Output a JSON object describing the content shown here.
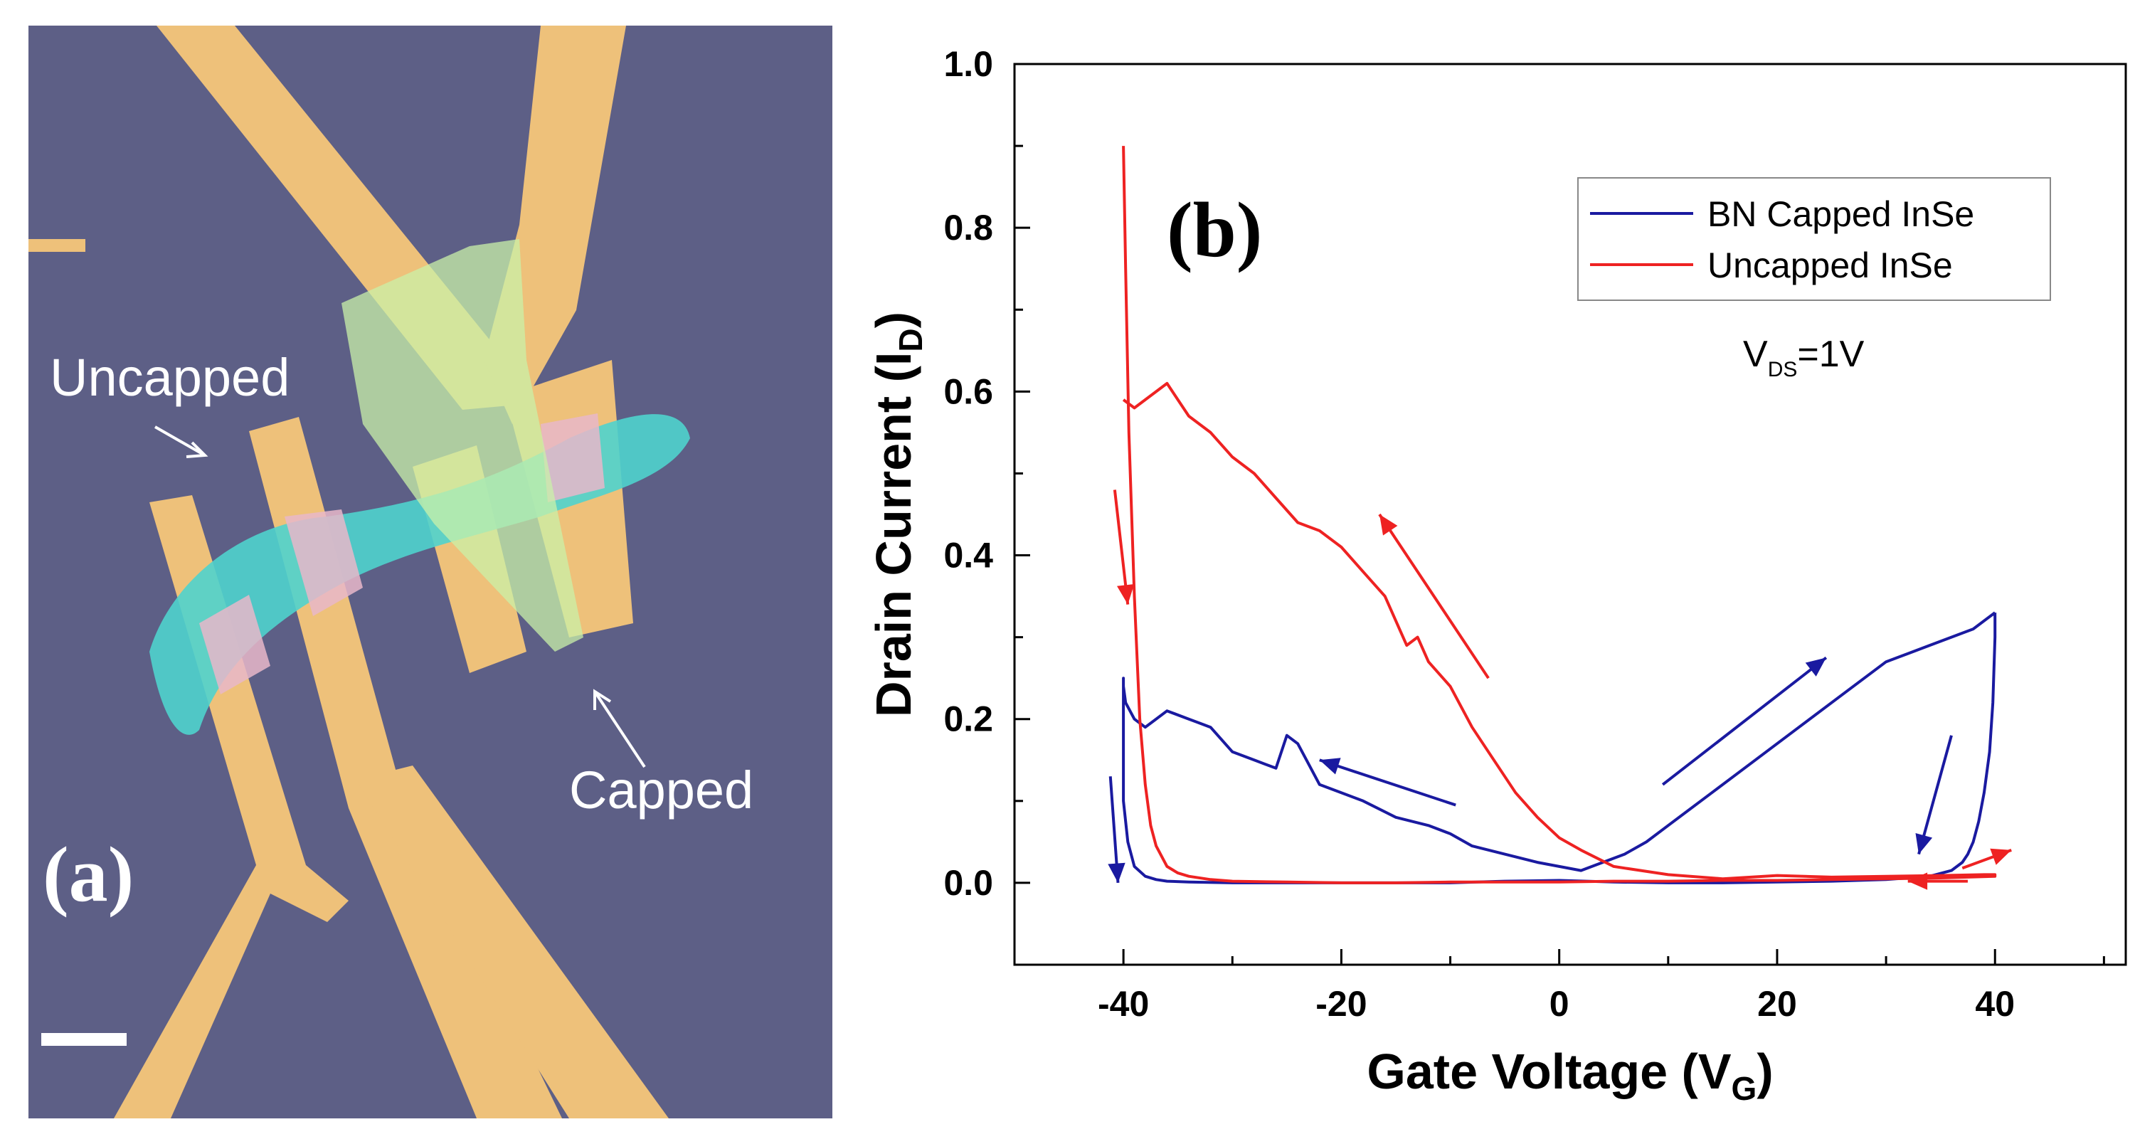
{
  "panel_a": {
    "label": "(a)",
    "uncapped_label": "Uncapped",
    "capped_label": "Capped",
    "colors": {
      "substrate": "#5d5f86",
      "gold": "#eec17a",
      "inse_flake": "#4fd3cd",
      "bn_flake": "#c9f0a8",
      "overlap": "#e7b7c9",
      "arrow": "#ffffff"
    }
  },
  "chart_data": {
    "type": "line",
    "panel_label": "(b)",
    "xlabel": "Gate Voltage (V",
    "xlabel_sub": "G",
    "xlabel_end": ")",
    "ylabel": "Drain Current (I",
    "ylabel_sub": "D",
    "ylabel_end": ")",
    "xlim": [
      -50,
      52
    ],
    "ylim": [
      -0.1,
      1.0
    ],
    "xticks": [
      -40,
      -20,
      0,
      20,
      40
    ],
    "xtick_labels": [
      "-40",
      "-20",
      "0",
      "20",
      "40"
    ],
    "yticks": [
      0.0,
      0.2,
      0.4,
      0.6,
      0.8,
      1.0
    ],
    "ytick_labels": [
      "0.0",
      "0.2",
      "0.4",
      "0.6",
      "0.8",
      "1.0"
    ],
    "annotation_main": "V",
    "annotation_sub": "DS",
    "annotation_end": "=1V",
    "legend_position": "top-right",
    "series": [
      {
        "name": "BN Capped InSe",
        "color": "#1a1aa0",
        "x": [
          40,
          40,
          39.8,
          39.5,
          39,
          38.5,
          38,
          37.5,
          37,
          36,
          34,
          30,
          25,
          20,
          15,
          10,
          5,
          0,
          -5,
          -10,
          -15,
          -20,
          -25,
          -30,
          -34,
          -36,
          -37,
          -38,
          -39,
          -39.6,
          -40,
          -40,
          -40,
          -40,
          -39.8,
          -39,
          -38,
          -36,
          -34,
          -32,
          -30,
          -28,
          -26,
          -25,
          -24,
          -22,
          -20,
          -18,
          -15,
          -12,
          -10,
          -8,
          -5,
          -2,
          0,
          2,
          4,
          6,
          8,
          10,
          14,
          18,
          22,
          26,
          30,
          32,
          34,
          36,
          38,
          40
        ],
        "y": [
          0.33,
          0.3,
          0.22,
          0.16,
          0.11,
          0.075,
          0.05,
          0.035,
          0.025,
          0.015,
          0.008,
          0.004,
          0.002,
          0.001,
          0.0,
          0.0,
          0.001,
          0.003,
          0.002,
          0.0,
          0.0,
          0.0,
          0.0,
          0.0,
          0.001,
          0.002,
          0.004,
          0.008,
          0.02,
          0.05,
          0.1,
          0.2,
          0.25,
          0.24,
          0.22,
          0.2,
          0.19,
          0.21,
          0.2,
          0.19,
          0.16,
          0.15,
          0.14,
          0.18,
          0.17,
          0.12,
          0.11,
          0.1,
          0.08,
          0.07,
          0.06,
          0.045,
          0.035,
          0.025,
          0.02,
          0.015,
          0.025,
          0.035,
          0.05,
          0.07,
          0.11,
          0.15,
          0.19,
          0.23,
          0.27,
          0.28,
          0.29,
          0.3,
          0.31,
          0.33
        ]
      },
      {
        "name": "Uncapped InSe",
        "color": "#ee2222",
        "x": [
          -40,
          -39.8,
          -39.5,
          -39,
          -38.5,
          -38,
          -37.5,
          -37,
          -36,
          -35,
          -34,
          -32,
          -30,
          -25,
          -20,
          -15,
          -10,
          -5,
          0,
          5,
          10,
          15,
          20,
          25,
          30,
          35,
          40,
          40,
          39,
          35,
          30,
          25,
          20,
          15,
          10,
          5,
          2,
          0,
          -2,
          -4,
          -6,
          -8,
          -10,
          -12,
          -13,
          -14,
          -16,
          -18,
          -20,
          -22,
          -24,
          -26,
          -28,
          -30,
          -32,
          -34,
          -36,
          -37,
          -38,
          -39,
          -40
        ],
        "y": [
          0.9,
          0.75,
          0.55,
          0.35,
          0.2,
          0.12,
          0.07,
          0.045,
          0.02,
          0.012,
          0.008,
          0.004,
          0.002,
          0.001,
          0.0,
          0.0,
          0.001,
          0.001,
          0.001,
          0.002,
          0.002,
          0.003,
          0.003,
          0.004,
          0.005,
          0.006,
          0.008,
          0.01,
          0.01,
          0.009,
          0.008,
          0.007,
          0.009,
          0.005,
          0.01,
          0.02,
          0.04,
          0.055,
          0.08,
          0.11,
          0.15,
          0.19,
          0.24,
          0.27,
          0.3,
          0.29,
          0.35,
          0.38,
          0.41,
          0.43,
          0.44,
          0.47,
          0.5,
          0.52,
          0.55,
          0.57,
          0.61,
          0.6,
          0.59,
          0.58,
          0.59
        ]
      }
    ],
    "arrows": [
      {
        "color": "#ee2222",
        "x1": -40.8,
        "y1": 0.48,
        "x2": -39.6,
        "y2": 0.34
      },
      {
        "color": "#ee2222",
        "x1": -6.5,
        "y1": 0.25,
        "x2": -16.5,
        "y2": 0.45
      },
      {
        "color": "#ee2222",
        "x1": 37.5,
        "y1": 0.002,
        "x2": 32,
        "y2": 0.002
      },
      {
        "color": "#ee2222",
        "x1": 37,
        "y1": 0.018,
        "x2": 41.5,
        "y2": 0.04
      },
      {
        "color": "#1a1aa0",
        "x1": -41.2,
        "y1": 0.13,
        "x2": -40.5,
        "y2": 0.0
      },
      {
        "color": "#1a1aa0",
        "x1": -9.5,
        "y1": 0.095,
        "x2": -22,
        "y2": 0.15
      },
      {
        "color": "#1a1aa0",
        "x1": 9.5,
        "y1": 0.12,
        "x2": 24.5,
        "y2": 0.275
      },
      {
        "color": "#1a1aa0",
        "x1": 36,
        "y1": 0.18,
        "x2": 33,
        "y2": 0.035
      }
    ]
  }
}
